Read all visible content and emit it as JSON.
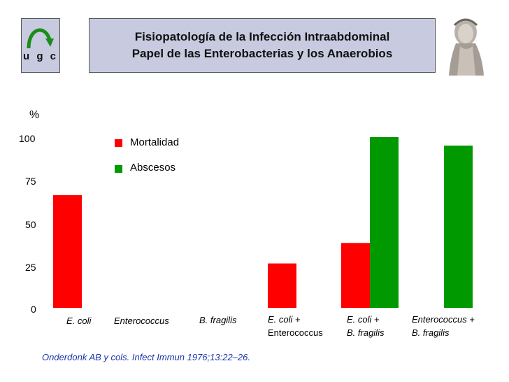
{
  "header": {
    "logo_text": "u g c",
    "title_line1": "Fisiopatología de la Infección Intraabdominal",
    "title_line2": "Papel de las Enterobacterias y los Anaerobios"
  },
  "chart_data": {
    "type": "bar",
    "title": "",
    "ylabel": "%",
    "xlabel": "",
    "ylim": [
      0,
      100
    ],
    "yticks": [
      "0",
      "25",
      "50",
      "75",
      "100"
    ],
    "categories": [
      {
        "line1": "E. coli",
        "line1_suffix": "",
        "line2": ""
      },
      {
        "line1": "Enterococcus",
        "line1_suffix": "",
        "line2": ""
      },
      {
        "line1": "B. fragilis",
        "line1_suffix": "",
        "line2": ""
      },
      {
        "line1": "E. coli",
        "line1_suffix": " +",
        "line2": "Enterococcus"
      },
      {
        "line1": "E. coli",
        "line1_suffix": " +",
        "line2": "B. fragilis"
      },
      {
        "line1": "Enterococcus",
        "line1_suffix": " +",
        "line2": "B. fragilis"
      }
    ],
    "series": [
      {
        "name": "Mortalidad",
        "color": "#ff0000",
        "values": [
          66,
          0,
          0,
          26,
          38,
          0
        ]
      },
      {
        "name": "Abscesos",
        "color": "#009900",
        "values": [
          0,
          0,
          0,
          0,
          100,
          95
        ]
      }
    ]
  },
  "citation": "Onderdonk AB y cols. Infect Immun 1976;13:22–26."
}
